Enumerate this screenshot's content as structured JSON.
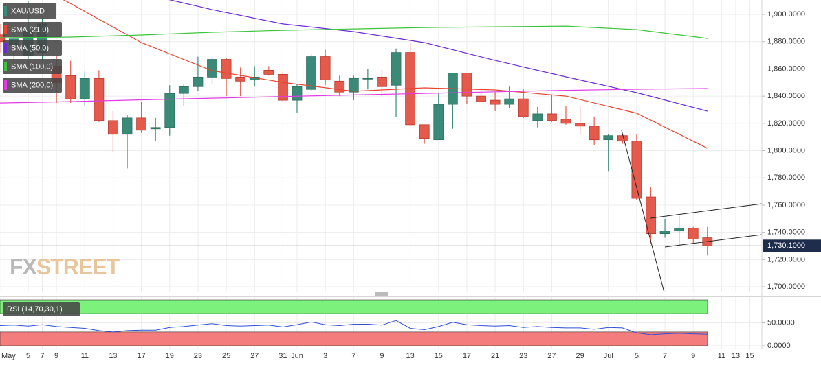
{
  "chart_data": [
    {
      "type": "candlestick",
      "name": "XAU/USD",
      "categories": [
        "May",
        null,
        "5",
        "7",
        "9",
        null,
        "11",
        null,
        "13",
        null,
        "17",
        null,
        "19",
        null,
        "23",
        null,
        "25",
        null,
        "27",
        null,
        "31",
        "Jun",
        null,
        "3",
        null,
        "7",
        null,
        "9",
        null,
        "13",
        null,
        "15",
        null,
        "17",
        null,
        "21",
        null,
        "23",
        null,
        "27",
        null,
        "29",
        null,
        "Jul",
        null,
        "5",
        null,
        "7",
        null,
        "9",
        null,
        "11",
        "13",
        "15"
      ],
      "open": [
        1885,
        1878,
        1870,
        1872,
        1862,
        1855,
        1838,
        1853,
        1822,
        1812,
        1824,
        1816,
        1817,
        1842,
        1847,
        1854,
        1867,
        1854,
        1852,
        1859,
        1856,
        1837,
        1845,
        1869,
        1851,
        1843,
        1853,
        1854,
        1848,
        1872,
        1819,
        1808,
        1834,
        1857,
        1840,
        1837,
        1834,
        1838,
        1822,
        1827,
        1823,
        1820,
        1818,
        1808,
        1811,
        1807,
        1766,
        1739,
        1741,
        1743,
        1736,
        null,
        null,
        null
      ],
      "high": [
        1893,
        1890,
        1910,
        1897,
        1870,
        1866,
        1858,
        1859,
        1829,
        1826,
        1836,
        1824,
        1848,
        1849,
        1869,
        1869,
        1868,
        1861,
        1862,
        1862,
        1858,
        1849,
        1871,
        1874,
        1855,
        1855,
        1860,
        1860,
        1875,
        1879,
        1819,
        1842,
        1857,
        1857,
        1846,
        1843,
        1847,
        1845,
        1832,
        1841,
        1832.5,
        1832.5,
        1825,
        1812,
        1812,
        1812,
        1773,
        1750,
        1752,
        1744,
        1744,
        null,
        null,
        null
      ],
      "low": [
        1872,
        1865,
        1862,
        1866,
        1835,
        1835,
        1833,
        1821,
        1799,
        1787,
        1813,
        1807,
        1811,
        1833,
        1843.6,
        1849,
        1840,
        1840,
        1847,
        1855,
        1836,
        1828,
        1844,
        1848,
        1840,
        1837,
        1845,
        1840,
        1825,
        1818,
        1805,
        1808,
        1816,
        1834,
        1835,
        1829,
        1831,
        1824,
        1817,
        1821,
        1819,
        1812,
        1804,
        1785,
        1805,
        1764,
        1732,
        1736,
        1730,
        1732,
        1723,
        null,
        null,
        null
      ],
      "close": [
        1880,
        1882,
        1888,
        1893,
        1850,
        1838,
        1853,
        1822,
        1812,
        1824,
        1815,
        1817,
        1842,
        1847,
        1854,
        1867,
        1853,
        1851,
        1854,
        1856,
        1837,
        1847,
        1869,
        1852,
        1843,
        1853,
        1853,
        1847,
        1872,
        1819,
        1809,
        1834,
        1857,
        1840,
        1836,
        1834,
        1838,
        1825,
        1827,
        1822,
        1820,
        1818,
        1808,
        1811,
        1807,
        1765,
        1739,
        1741,
        1743,
        1735,
        1730.1,
        null,
        null,
        null
      ],
      "up_color": "#3a8a78",
      "down_color": "#e45a4c",
      "overlays": [
        {
          "name": "SMA (21,0)",
          "color": "#e8432f",
          "x": [
            0,
            5,
            10,
            15,
            20,
            25,
            30,
            35,
            40,
            45,
            50
          ],
          "values": [
            1935,
            1908,
            1879.3,
            1858.7,
            1850.1,
            1843.6,
            1846.1,
            1844.6,
            1840,
            1827.5,
            1801.8
          ]
        },
        {
          "name": "SMA (50,0)",
          "color": "#6a2bd9",
          "x": [
            0,
            5,
            10,
            15,
            20,
            25,
            30,
            35,
            40,
            45,
            50
          ],
          "values": [
            1935,
            1925,
            1915.6,
            1903.5,
            1893,
            1887.4,
            1879.3,
            1866.2,
            1854.2,
            1842.6,
            1829
          ]
        },
        {
          "name": "SMA (100,0)",
          "color": "#3cc43c",
          "x": [
            0,
            5,
            10,
            15,
            20,
            25,
            30,
            35,
            40,
            45,
            50
          ],
          "values": [
            1882.9,
            1883.4,
            1884.9,
            1886.9,
            1888.4,
            1889.4,
            1890.4,
            1890.9,
            1891.4,
            1888.9,
            1882.4
          ]
        },
        {
          "name": "SMA (200,0)",
          "color": "#e23ae6",
          "x": [
            0,
            5,
            10,
            15,
            20,
            25,
            30,
            35,
            40,
            45,
            50
          ],
          "values": [
            1835,
            1836,
            1837.3,
            1838.5,
            1839.7,
            1840.9,
            1842,
            1843.2,
            1844.3,
            1845.1,
            1845.6
          ]
        }
      ],
      "ylim": [
        1696.5,
        1910.6
      ],
      "yticks": [
        {
          "value": 1700,
          "label": "1,700.0000"
        },
        {
          "value": 1720,
          "label": "1,720.0000"
        },
        {
          "value": 1740,
          "label": "1,740.0000"
        },
        {
          "value": 1760,
          "label": "1,760.0000"
        },
        {
          "value": 1780,
          "label": "1,780.0000"
        },
        {
          "value": 1800,
          "label": "1,800.0000"
        },
        {
          "value": 1820,
          "label": "1,820.0000"
        },
        {
          "value": 1840,
          "label": "1,840.0000"
        },
        {
          "value": 1860,
          "label": "1,860.0000"
        },
        {
          "value": 1880,
          "label": "1,880.0000"
        },
        {
          "value": 1900,
          "label": "1,900.0000"
        }
      ],
      "grid": true,
      "legend": "top-left",
      "last_price": {
        "value": 1730.1,
        "label": "1,730.1000"
      },
      "watermark": [
        "FX",
        "STREET"
      ]
    },
    {
      "type": "line",
      "name": "RSI (14,70,30,1)",
      "color": "#2f4fd8",
      "values": [
        44,
        45,
        43,
        46,
        42,
        40,
        38,
        33,
        30,
        33,
        34,
        34,
        40,
        42,
        45,
        48,
        44,
        43,
        44,
        45,
        41,
        46,
        52,
        46,
        44,
        47,
        47,
        45,
        55,
        38,
        35,
        42,
        51,
        46,
        44,
        43,
        44,
        40,
        42,
        40,
        39,
        39,
        36,
        40,
        39,
        28,
        24,
        26,
        27,
        26,
        25
      ],
      "ylim": [
        -6,
        106
      ],
      "yticks": [
        {
          "value": 0,
          "label": "0.0000"
        },
        {
          "value": 50,
          "label": "50.0000"
        }
      ],
      "bands": [
        {
          "from": 70,
          "to": 100,
          "color": "#7cf27c"
        },
        {
          "from": 0,
          "to": 30,
          "color": "#f47c7c"
        }
      ],
      "grid": true
    }
  ]
}
